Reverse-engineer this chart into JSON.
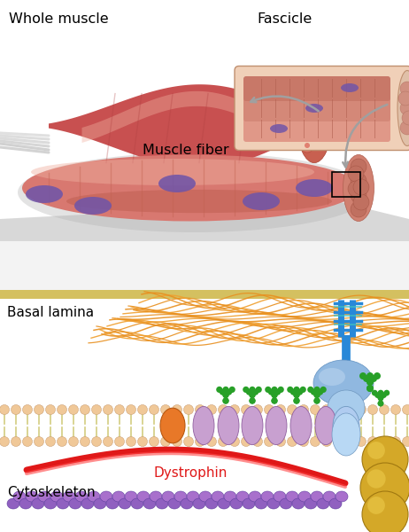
{
  "top_panel_bg": "#ffffff",
  "bottom_panel_bg": "#dce8f5",
  "label_whole_muscle": "Whole muscle",
  "label_fascicle": "Fascicle",
  "label_muscle_fiber": "Muscle fiber",
  "label_basal_lamina": "Basal lamina",
  "label_dystrophin": "Dystrophin",
  "label_cytoskeleton": "Cytoskeleton",
  "muscle_dark": "#c85050",
  "muscle_mid": "#d87070",
  "muscle_light": "#e89080",
  "muscle_highlight": "#f0b0a0",
  "fascicle_bg": "#f0d0b8",
  "nucleus_color": "#7055a8",
  "membrane_head": "#f0c898",
  "membrane_tail": "#e8d870",
  "protein_purple": "#c8a0d0",
  "protein_orange": "#e87828",
  "protein_blue_upper": "#90b8e0",
  "protein_blue_lower": "#b0ccf0",
  "protein_blue_stem": "#5098d0",
  "protein_green": "#28a028",
  "dystrophin_red": "#e01818",
  "cytoskeleton_purple": "#9060c0",
  "golden": "#d4a828",
  "arrow_gray": "#a0a0a0",
  "tendon_white": "#e8e8e8",
  "blue_strut": "#2888d8"
}
